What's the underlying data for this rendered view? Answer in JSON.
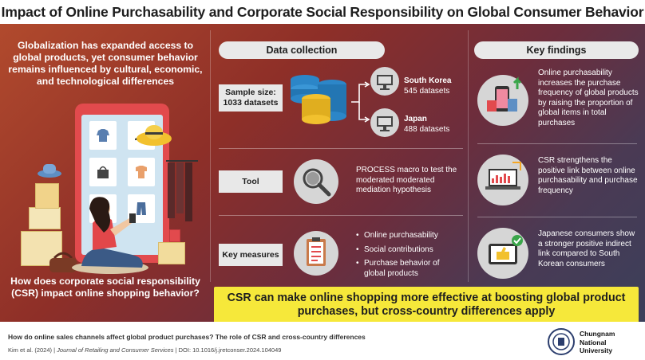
{
  "title": "Impact of Online Purchasability and Corporate Social Responsibility on Global Consumer Behavior",
  "left": {
    "intro": "Globalization has expanded access to global products, yet consumer behavior remains influenced by cultural, economic, and technological differences",
    "question": "How does corporate social responsibility (CSR) impact online shopping behavior?"
  },
  "data_collection": {
    "heading": "Data collection",
    "sample_label": "Sample size:",
    "sample_value": "1033 datasets",
    "countries": [
      {
        "name": "South Korea",
        "count": "545 datasets"
      },
      {
        "name": "Japan",
        "count": "488 datasets"
      }
    ],
    "tool_label": "Tool",
    "tool_text": "PROCESS macro to test the moderated moderated mediation hypothesis",
    "measures_label": "Key measures",
    "measures": [
      "Online purchasability",
      "Social contributions",
      "Purchase behavior of global products"
    ]
  },
  "key_findings": {
    "heading": "Key findings",
    "items": [
      "Online purchasability increases the purchase frequency of global products by raising the proportion of global items in total purchases",
      "CSR strengthens the positive link between online purchasability and purchase frequency",
      "Japanese consumers show a stronger positive indirect link compared to South Korean consumers"
    ]
  },
  "banner": "CSR can make online shopping more effective at boosting global product purchases, but cross-country differences apply",
  "footer": {
    "paper_title": "How do online sales channels affect global product purchases? The role of CSR and cross-country differences",
    "cite_authors": "Kim et al. (2024)",
    "cite_journal": "Journal of Retailing and Consumer Services",
    "cite_doi": "DOI: 10.1016/j.jretconser.2024.104049",
    "university": [
      "Chungnam",
      "National",
      "University"
    ]
  },
  "colors": {
    "accent_yellow": "#f6e83a",
    "bg_red": "#8e2f28",
    "bg_slate": "#3b3f5a",
    "phone_red": "#e24a4d",
    "db_blue": "#2c86c8",
    "db_yellow": "#f2c12e"
  }
}
